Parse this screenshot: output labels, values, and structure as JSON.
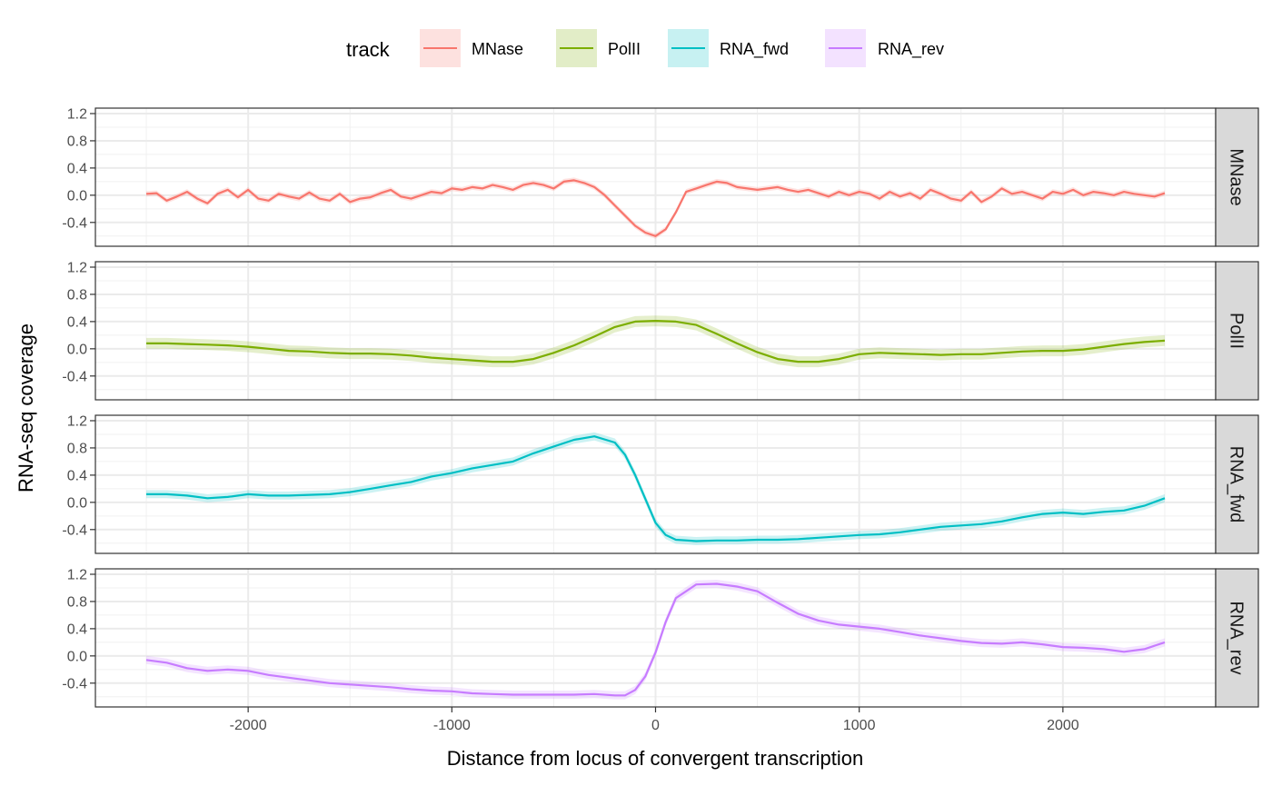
{
  "legend": {
    "title": "track",
    "entries": [
      {
        "label": "MNase",
        "color": "#F8766D"
      },
      {
        "label": "PolII",
        "color": "#7CAE00"
      },
      {
        "label": "RNA_fwd",
        "color": "#00BFC4"
      },
      {
        "label": "RNA_rev",
        "color": "#C77CFF"
      }
    ]
  },
  "chart_data": {
    "type": "line",
    "facet": "rows",
    "xlabel": "Distance from locus of convergent transcription",
    "ylabel": "RNA-seq coverage",
    "xlim": [
      -2750,
      2750
    ],
    "ylim": [
      -0.75,
      1.28
    ],
    "x_ticks": [
      -2000,
      -1000,
      0,
      1000,
      2000
    ],
    "x_tick_labels": [
      "-2000",
      "-1000",
      "0",
      "1000",
      "2000"
    ],
    "y_ticks": [
      -0.4,
      0.0,
      0.4,
      0.8,
      1.2
    ],
    "y_tick_labels": [
      "-0.4",
      "0.0",
      "0.4",
      "0.8",
      "1.2"
    ],
    "grid": true,
    "confidence_band": true,
    "legend_position": "top",
    "series": [
      {
        "name": "MNase",
        "color": "#F8766D",
        "band": 0.04,
        "x": [
          -2500,
          -2450,
          -2400,
          -2350,
          -2300,
          -2250,
          -2200,
          -2150,
          -2100,
          -2050,
          -2000,
          -1950,
          -1900,
          -1850,
          -1800,
          -1750,
          -1700,
          -1650,
          -1600,
          -1550,
          -1500,
          -1450,
          -1400,
          -1350,
          -1300,
          -1250,
          -1200,
          -1150,
          -1100,
          -1050,
          -1000,
          -950,
          -900,
          -850,
          -800,
          -750,
          -700,
          -650,
          -600,
          -550,
          -500,
          -450,
          -400,
          -350,
          -300,
          -250,
          -200,
          -150,
          -100,
          -50,
          0,
          50,
          100,
          150,
          200,
          250,
          300,
          350,
          400,
          450,
          500,
          550,
          600,
          650,
          700,
          750,
          800,
          850,
          900,
          950,
          1000,
          1050,
          1100,
          1150,
          1200,
          1250,
          1300,
          1350,
          1400,
          1450,
          1500,
          1550,
          1600,
          1650,
          1700,
          1750,
          1800,
          1850,
          1900,
          1950,
          2000,
          2050,
          2100,
          2150,
          2200,
          2250,
          2300,
          2350,
          2400,
          2450,
          2500
        ],
        "y": [
          0.02,
          0.03,
          -0.08,
          -0.02,
          0.05,
          -0.05,
          -0.12,
          0.02,
          0.08,
          -0.03,
          0.08,
          -0.05,
          -0.08,
          0.02,
          -0.02,
          -0.05,
          0.04,
          -0.05,
          -0.08,
          0.02,
          -0.1,
          -0.05,
          -0.03,
          0.03,
          0.08,
          -0.02,
          -0.05,
          0.0,
          0.05,
          0.03,
          0.1,
          0.08,
          0.12,
          0.1,
          0.15,
          0.12,
          0.08,
          0.15,
          0.18,
          0.15,
          0.1,
          0.2,
          0.22,
          0.18,
          0.12,
          0.0,
          -0.15,
          -0.3,
          -0.45,
          -0.55,
          -0.6,
          -0.5,
          -0.25,
          0.05,
          0.1,
          0.15,
          0.2,
          0.18,
          0.12,
          0.1,
          0.08,
          0.1,
          0.12,
          0.08,
          0.05,
          0.08,
          0.03,
          -0.02,
          0.05,
          0.0,
          0.05,
          0.02,
          -0.05,
          0.05,
          -0.02,
          0.03,
          -0.05,
          0.08,
          0.02,
          -0.05,
          -0.08,
          0.05,
          -0.1,
          -0.02,
          0.1,
          0.02,
          0.05,
          0.0,
          -0.05,
          0.05,
          0.02,
          0.08,
          0.0,
          0.05,
          0.03,
          0.0,
          0.05,
          0.02,
          0.0,
          -0.02,
          0.03
        ]
      },
      {
        "name": "PolII",
        "color": "#7CAE00",
        "band": 0.08,
        "x": [
          -2500,
          -2400,
          -2300,
          -2200,
          -2100,
          -2000,
          -1900,
          -1800,
          -1700,
          -1600,
          -1500,
          -1400,
          -1300,
          -1200,
          -1100,
          -1000,
          -900,
          -800,
          -700,
          -600,
          -500,
          -400,
          -300,
          -200,
          -100,
          0,
          100,
          200,
          300,
          400,
          500,
          600,
          700,
          800,
          900,
          1000,
          1100,
          1200,
          1300,
          1400,
          1500,
          1600,
          1700,
          1800,
          1900,
          2000,
          2100,
          2200,
          2300,
          2400,
          2500
        ],
        "y": [
          0.08,
          0.08,
          0.07,
          0.06,
          0.05,
          0.03,
          0.0,
          -0.03,
          -0.04,
          -0.06,
          -0.07,
          -0.07,
          -0.08,
          -0.1,
          -0.13,
          -0.15,
          -0.17,
          -0.19,
          -0.19,
          -0.15,
          -0.06,
          0.05,
          0.18,
          0.32,
          0.4,
          0.41,
          0.4,
          0.35,
          0.22,
          0.08,
          -0.05,
          -0.15,
          -0.19,
          -0.19,
          -0.15,
          -0.08,
          -0.06,
          -0.07,
          -0.08,
          -0.09,
          -0.08,
          -0.08,
          -0.06,
          -0.04,
          -0.03,
          -0.03,
          -0.01,
          0.03,
          0.07,
          0.1,
          0.12
        ]
      },
      {
        "name": "RNA_fwd",
        "color": "#00BFC4",
        "band": 0.06,
        "x": [
          -2500,
          -2400,
          -2300,
          -2200,
          -2100,
          -2000,
          -1900,
          -1800,
          -1700,
          -1600,
          -1500,
          -1400,
          -1300,
          -1200,
          -1100,
          -1000,
          -900,
          -800,
          -700,
          -600,
          -500,
          -400,
          -300,
          -200,
          -150,
          -100,
          -50,
          0,
          50,
          100,
          200,
          300,
          400,
          500,
          600,
          700,
          800,
          900,
          1000,
          1100,
          1200,
          1300,
          1400,
          1500,
          1600,
          1700,
          1800,
          1900,
          2000,
          2100,
          2200,
          2300,
          2400,
          2500
        ],
        "y": [
          0.12,
          0.12,
          0.1,
          0.06,
          0.08,
          0.12,
          0.1,
          0.1,
          0.11,
          0.12,
          0.15,
          0.2,
          0.25,
          0.3,
          0.38,
          0.43,
          0.5,
          0.55,
          0.6,
          0.72,
          0.82,
          0.92,
          0.97,
          0.88,
          0.7,
          0.4,
          0.05,
          -0.3,
          -0.48,
          -0.55,
          -0.57,
          -0.56,
          -0.56,
          -0.55,
          -0.55,
          -0.54,
          -0.52,
          -0.5,
          -0.48,
          -0.47,
          -0.44,
          -0.4,
          -0.36,
          -0.34,
          -0.32,
          -0.28,
          -0.22,
          -0.17,
          -0.15,
          -0.17,
          -0.14,
          -0.12,
          -0.05,
          0.06
        ]
      },
      {
        "name": "RNA_rev",
        "color": "#C77CFF",
        "band": 0.06,
        "x": [
          -2500,
          -2400,
          -2300,
          -2200,
          -2100,
          -2000,
          -1900,
          -1800,
          -1700,
          -1600,
          -1500,
          -1400,
          -1300,
          -1200,
          -1100,
          -1000,
          -900,
          -800,
          -700,
          -600,
          -500,
          -400,
          -300,
          -200,
          -150,
          -100,
          -50,
          0,
          50,
          100,
          200,
          300,
          400,
          500,
          600,
          700,
          800,
          900,
          1000,
          1100,
          1200,
          1300,
          1400,
          1500,
          1600,
          1700,
          1800,
          1900,
          2000,
          2100,
          2200,
          2300,
          2400,
          2500
        ],
        "y": [
          -0.06,
          -0.1,
          -0.18,
          -0.22,
          -0.2,
          -0.22,
          -0.28,
          -0.32,
          -0.36,
          -0.4,
          -0.42,
          -0.44,
          -0.46,
          -0.49,
          -0.51,
          -0.52,
          -0.55,
          -0.56,
          -0.57,
          -0.57,
          -0.57,
          -0.57,
          -0.56,
          -0.58,
          -0.58,
          -0.5,
          -0.3,
          0.05,
          0.5,
          0.85,
          1.05,
          1.06,
          1.02,
          0.95,
          0.78,
          0.62,
          0.52,
          0.46,
          0.43,
          0.4,
          0.35,
          0.3,
          0.26,
          0.22,
          0.19,
          0.18,
          0.2,
          0.17,
          0.13,
          0.12,
          0.1,
          0.06,
          0.1,
          0.2
        ]
      }
    ]
  }
}
